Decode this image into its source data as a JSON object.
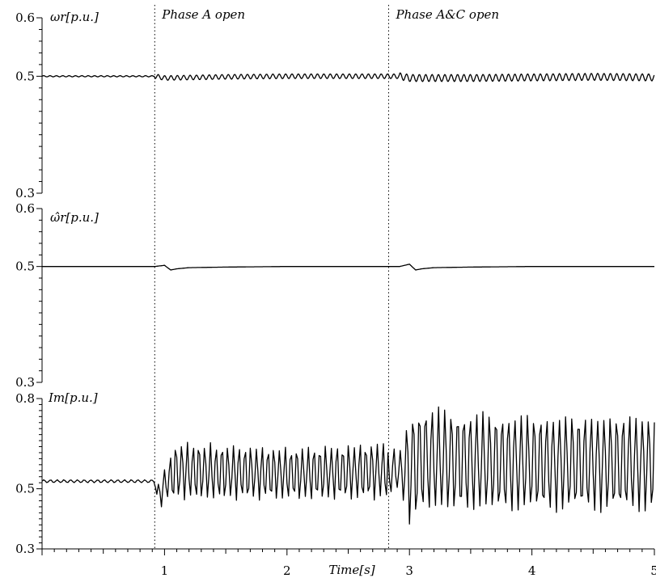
{
  "chart_data": [
    {
      "type": "line",
      "panel_label": "ωr[p.u.]",
      "ylim": [
        0.3,
        0.6
      ],
      "yticks": [
        "0.6",
        "0.5",
        "0.3"
      ],
      "x": [
        0,
        0.3,
        0.6,
        0.92,
        1.0,
        1.5,
        2.0,
        2.5,
        2.92,
        3.0,
        3.5,
        4.0,
        4.5,
        5.0
      ],
      "values": [
        0.5,
        0.5,
        0.5,
        0.5,
        0.497,
        0.499,
        0.5,
        0.5,
        0.5,
        0.497,
        0.497,
        0.498,
        0.499,
        0.498
      ],
      "oscillation_amplitude": [
        [
          0,
          0.92,
          0.001
        ],
        [
          0.92,
          2.92,
          0.004
        ],
        [
          2.92,
          5.0,
          0.006
        ]
      ]
    },
    {
      "type": "line",
      "panel_label": "ω̂r[p.u.]",
      "ylim": [
        0.3,
        0.6
      ],
      "yticks": [
        "0.6",
        "0.5",
        "0.3"
      ],
      "x": [
        0,
        0.92,
        1.0,
        1.05,
        1.1,
        1.2,
        1.5,
        2.0,
        2.92,
        3.0,
        3.05,
        3.1,
        3.2,
        3.5,
        4.0,
        5.0
      ],
      "values": [
        0.5,
        0.5,
        0.502,
        0.494,
        0.496,
        0.498,
        0.499,
        0.5,
        0.5,
        0.504,
        0.494,
        0.496,
        0.498,
        0.499,
        0.5,
        0.5
      ]
    },
    {
      "type": "line",
      "panel_label": "Im[p.u.]",
      "ylim": [
        0.3,
        0.8
      ],
      "yticks": [
        "0.8",
        "0.5",
        "0.3"
      ],
      "x": [
        0,
        0.5,
        0.92,
        0.95,
        1.0,
        1.1,
        1.5,
        2.0,
        2.5,
        2.8,
        2.92,
        3.0,
        3.1,
        3.5,
        4.0,
        4.5,
        5.0
      ],
      "upper_envelope": [
        0.53,
        0.53,
        0.53,
        0.52,
        0.57,
        0.66,
        0.65,
        0.64,
        0.65,
        0.66,
        0.62,
        0.76,
        0.78,
        0.76,
        0.75,
        0.75,
        0.75
      ],
      "lower_envelope": [
        0.52,
        0.52,
        0.52,
        0.42,
        0.46,
        0.46,
        0.46,
        0.46,
        0.46,
        0.46,
        0.5,
        0.37,
        0.42,
        0.42,
        0.42,
        0.42,
        0.42
      ]
    }
  ],
  "x_axis": {
    "label": "Time[s]",
    "xlim": [
      0,
      5
    ],
    "ticks": [
      "1",
      "2",
      "3",
      "4",
      "5"
    ]
  },
  "events": [
    {
      "t": 0.92,
      "label": "Phase A open"
    },
    {
      "t": 2.83,
      "label": "Phase A&C open"
    }
  ],
  "style": {
    "line_color": "#000000",
    "background": "#ffffff"
  }
}
